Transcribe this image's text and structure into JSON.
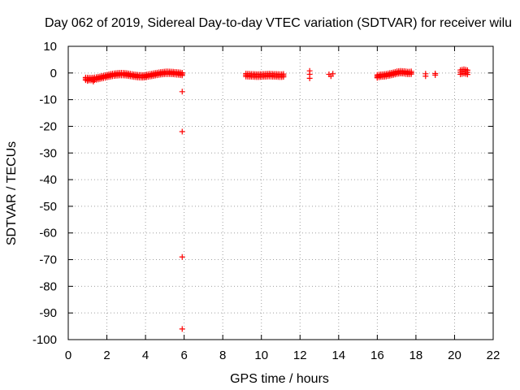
{
  "chart_data": {
    "type": "scatter",
    "title": "Day 062 of 2019, Sidereal Day-to-day VTEC variation (SDTVAR) for receiver wilu",
    "xlabel": "GPS time / hours",
    "ylabel": "SDTVAR / TECUs",
    "xlim": [
      0,
      22
    ],
    "ylim": [
      -100,
      10
    ],
    "xticks": [
      0,
      2,
      4,
      6,
      8,
      10,
      12,
      14,
      16,
      18,
      20,
      22
    ],
    "yticks": [
      10,
      0,
      -10,
      -20,
      -30,
      -40,
      -50,
      -60,
      -70,
      -80,
      -90,
      -100
    ],
    "grid": true,
    "marker": "plus",
    "color": "#ff0000",
    "segments": [
      {
        "x": [
          0.9,
          1.2,
          1.5,
          1.8,
          2.1,
          2.4,
          2.7,
          3.0,
          3.3,
          3.6,
          3.9,
          4.2,
          4.5,
          4.8,
          5.1,
          5.4,
          5.7,
          5.9
        ],
        "y": [
          -2.2,
          -2.3,
          -2.0,
          -1.5,
          -1.0,
          -0.6,
          -0.4,
          -0.5,
          -0.9,
          -1.2,
          -1.3,
          -0.9,
          -0.5,
          -0.1,
          0.1,
          0.0,
          -0.2,
          -0.4
        ],
        "spread": 1.0
      },
      {
        "x": [
          9.2,
          9.5,
          9.8,
          10.1,
          10.4,
          10.7,
          11.0,
          11.2
        ],
        "y": [
          -0.8,
          -0.9,
          -1.0,
          -0.9,
          -0.8,
          -0.9,
          -1.0,
          -0.9
        ],
        "spread": 1.1
      },
      {
        "x": [
          16.0,
          16.2,
          16.4,
          16.6,
          16.8,
          17.0,
          17.2,
          17.4,
          17.6,
          17.8
        ],
        "y": [
          -1.2,
          -1.0,
          -0.9,
          -0.6,
          -0.3,
          0.1,
          0.3,
          0.2,
          0.0,
          0.1
        ],
        "spread": 1.0
      },
      {
        "x": [
          20.3,
          20.5,
          20.7
        ],
        "y": [
          0.3,
          0.6,
          0.2
        ],
        "spread": 1.6
      }
    ],
    "points": [
      {
        "x": 5.9,
        "y": -7
      },
      {
        "x": 5.9,
        "y": -22
      },
      {
        "x": 5.9,
        "y": -69
      },
      {
        "x": 5.9,
        "y": -96
      },
      {
        "x": 12.5,
        "y": 0.8
      },
      {
        "x": 12.5,
        "y": -0.5
      },
      {
        "x": 12.5,
        "y": -2
      },
      {
        "x": 13.5,
        "y": -0.5
      },
      {
        "x": 13.6,
        "y": -1.2
      },
      {
        "x": 13.7,
        "y": -0.3
      },
      {
        "x": 18.5,
        "y": -0.3
      },
      {
        "x": 18.5,
        "y": -1.2
      },
      {
        "x": 19.0,
        "y": -0.2
      },
      {
        "x": 19.0,
        "y": -0.8
      },
      {
        "x": 16.0,
        "y": -1.8
      },
      {
        "x": 1.0,
        "y": -3.0
      },
      {
        "x": 1.3,
        "y": -3.2
      }
    ]
  }
}
